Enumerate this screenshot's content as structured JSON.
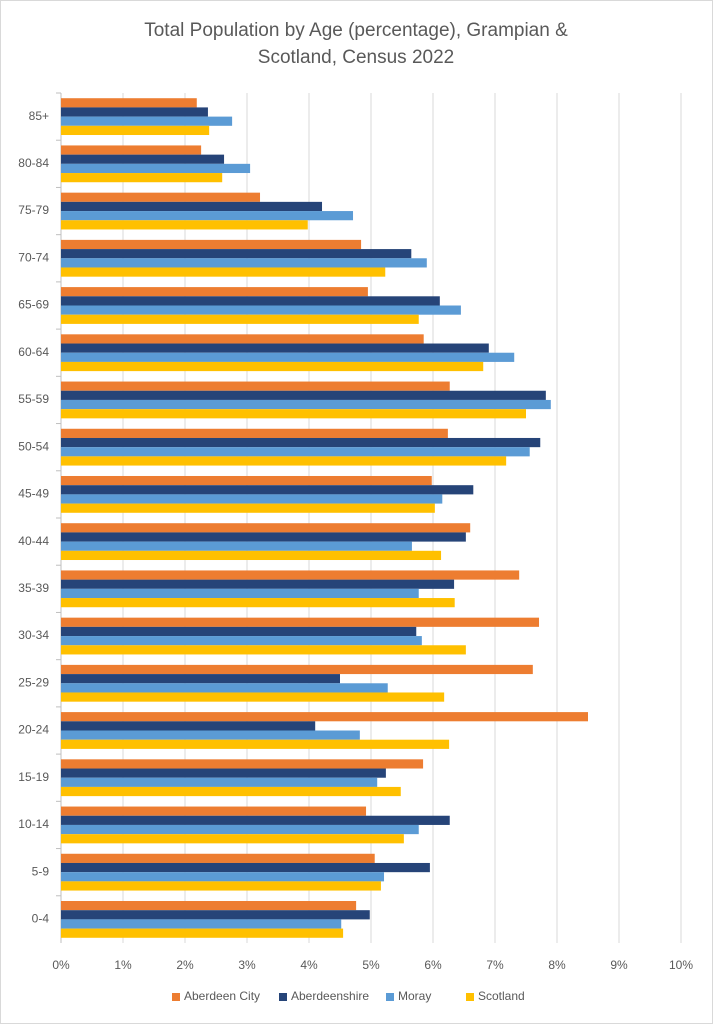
{
  "chart_data": {
    "type": "hbar",
    "title": [
      "Total Population by Age (percentage), Grampian &",
      "Scotland, Census 2022"
    ],
    "categories": [
      "85+",
      "80-84",
      "75-79",
      "70-74",
      "65-69",
      "60-64",
      "55-59",
      "50-54",
      "45-49",
      "40-44",
      "35-39",
      "30-34",
      "25-29",
      "20-24",
      "15-19",
      "10-14",
      "5-9",
      "0-4"
    ],
    "series": [
      {
        "name": "Aberdeen City",
        "color": "#ED7D31",
        "values": [
          2.19,
          2.26,
          3.21,
          4.84,
          4.95,
          5.85,
          6.27,
          6.24,
          5.98,
          6.6,
          7.39,
          7.71,
          7.61,
          8.5,
          5.84,
          4.92,
          5.06,
          4.76
        ]
      },
      {
        "name": "Aberdeenshire",
        "color": "#264478",
        "values": [
          2.37,
          2.63,
          4.21,
          5.65,
          6.11,
          6.9,
          7.82,
          7.73,
          6.65,
          6.53,
          6.34,
          5.73,
          4.5,
          4.1,
          5.24,
          6.27,
          5.95,
          4.98
        ]
      },
      {
        "name": "Moray",
        "color": "#5B9BD5",
        "values": [
          2.76,
          3.05,
          4.71,
          5.9,
          6.45,
          7.31,
          7.9,
          7.56,
          6.15,
          5.66,
          5.77,
          5.82,
          5.27,
          4.82,
          5.1,
          5.77,
          5.21,
          4.52
        ]
      },
      {
        "name": "Scotland",
        "color": "#FFC000",
        "values": [
          2.39,
          2.6,
          3.98,
          5.23,
          5.77,
          6.81,
          7.5,
          7.18,
          6.03,
          6.13,
          6.35,
          6.53,
          6.18,
          6.26,
          5.48,
          5.53,
          5.16,
          4.55
        ]
      }
    ],
    "xlim": [
      0,
      10
    ],
    "xticks": [
      {
        "value": 0,
        "label": "0%"
      },
      {
        "value": 1,
        "label": "1%"
      },
      {
        "value": 2,
        "label": "2%"
      },
      {
        "value": 3,
        "label": "3%"
      },
      {
        "value": 4,
        "label": "4%"
      },
      {
        "value": 5,
        "label": "5%"
      },
      {
        "value": 6,
        "label": "6%"
      },
      {
        "value": 7,
        "label": "7%"
      },
      {
        "value": 8,
        "label": "8%"
      },
      {
        "value": 9,
        "label": "9%"
      },
      {
        "value": 10,
        "label": "10%"
      }
    ],
    "grid": true,
    "legend": "bottom"
  }
}
